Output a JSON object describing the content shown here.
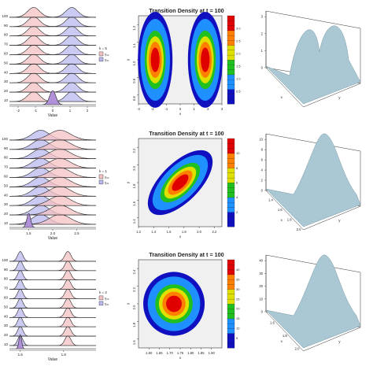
{
  "figure": {
    "heatmap_title": "Transition Density at t = 100",
    "ridge_xlabel": "Value",
    "ridge_y_ticks": [
      "100",
      "90",
      "80",
      "70",
      "60",
      "50",
      "40",
      "30",
      "20",
      "10"
    ],
    "colors": {
      "red_fill": "#f4c2c2",
      "blue_fill": "#b8b8ee",
      "purple_fill": "#b090d8",
      "surface": "#a9c8d4",
      "heat_bg": "#f0f0f0"
    }
  },
  "chart_data": [
    {
      "id": "row1-ridge",
      "type": "area",
      "panel": "ridgeline",
      "legend": {
        "title": "k = 5",
        "entries": [
          "γ₁₂",
          "γ₂₁"
        ]
      },
      "xlabel": "Value",
      "x_ticks": [
        "-2",
        "-1",
        "0",
        "1",
        "2"
      ],
      "y_ticks": [
        "100",
        "90",
        "80",
        "70",
        "60",
        "50",
        "40",
        "30",
        "20",
        "10"
      ],
      "xlim": [
        -2.5,
        2.5
      ],
      "series": [
        {
          "values": [
            -1.1,
            -1.1,
            -1.1,
            -1.1,
            -1.1,
            -1.1,
            -1.1,
            -1.1,
            -1.1,
            -1.1
          ],
          "sd": 0.35,
          "color": "red"
        },
        {
          "values": [
            1.1,
            1.1,
            1.1,
            1.1,
            1.1,
            1.1,
            1.1,
            1.1,
            1.1,
            1.1
          ],
          "sd": 0.35,
          "color": "blue"
        }
      ],
      "initial": {
        "x": 0.0,
        "sd": 0.18
      }
    },
    {
      "id": "row1-heat",
      "type": "heatmap",
      "title": "Transition Density at t = 100",
      "xlabel": "x",
      "ylabel": "y",
      "x_ticks": [
        "-3",
        "-2",
        "-1",
        "0",
        "1",
        "2",
        "3"
      ],
      "y_ticks": [
        "0.8",
        "0.9",
        "1.0",
        "1.1",
        "1.2"
      ],
      "xlim": [
        -3,
        3
      ],
      "ylim": [
        0.75,
        1.25
      ],
      "colorbar_ticks": [
        "0.5",
        "1.0",
        "1.5",
        "2.0",
        "2.5",
        "3.0"
      ],
      "modes": [
        {
          "x": -1.8,
          "y": 1.0,
          "sx": 0.55,
          "sy": 0.12,
          "amp": 3.4
        },
        {
          "x": 1.8,
          "y": 1.0,
          "sx": 0.55,
          "sy": 0.12,
          "amp": 3.4
        }
      ]
    },
    {
      "id": "row1-surface",
      "type": "area",
      "panel": "surface",
      "z_ticks": [
        "0",
        "1",
        "2",
        "3"
      ],
      "xlabel": "x",
      "ylabel": "y"
    },
    {
      "id": "row2-ridge",
      "type": "area",
      "panel": "ridgeline",
      "legend": {
        "title": "k = 1",
        "entries": [
          "γ₁₂",
          "γ₂₁"
        ]
      },
      "xlabel": "Value",
      "x_ticks": [
        "1.5",
        "2.0",
        "2.5"
      ],
      "y_ticks": [
        "100",
        "90",
        "80",
        "70",
        "60",
        "50",
        "40",
        "30",
        "20",
        "10"
      ],
      "xlim": [
        1.1,
        2.9
      ],
      "series": [
        {
          "values": [
            1.75,
            1.75,
            1.75,
            1.75,
            1.75,
            1.75,
            1.75,
            1.75,
            1.75,
            1.75
          ],
          "sd": 0.18,
          "color": "blue"
        },
        {
          "values": [
            2.15,
            2.15,
            2.15,
            2.15,
            2.15,
            2.15,
            2.15,
            2.15,
            2.15,
            2.15
          ],
          "sd": 0.22,
          "color": "red"
        }
      ],
      "initial": {
        "x": 1.5,
        "sd": 0.04
      }
    },
    {
      "id": "row2-heat",
      "type": "heatmap",
      "title": "Transition Density at t = 100",
      "xlabel": "x",
      "ylabel": "y",
      "x_ticks": [
        "1.2",
        "1.4",
        "1.6",
        "1.8",
        "2.0",
        "2.2"
      ],
      "y_ticks": [
        "1.4",
        "1.6",
        "1.8",
        "2.0",
        "2.2"
      ],
      "xlim": [
        1.2,
        2.3
      ],
      "ylim": [
        1.3,
        2.3
      ],
      "colorbar_ticks": [
        "2",
        "4",
        "6",
        "8",
        "10"
      ],
      "modes": [
        {
          "x": 1.75,
          "y": 1.8,
          "sx": 0.17,
          "sy": 0.15,
          "rho": 0.7,
          "amp": 11
        }
      ]
    },
    {
      "id": "row2-surface",
      "type": "area",
      "panel": "surface",
      "z_ticks": [
        "0",
        "2",
        "4",
        "6",
        "8",
        "10"
      ],
      "x_ticks": [
        "1.4",
        "1.6",
        "1.8",
        "2.0"
      ],
      "xlabel": "x",
      "ylabel": "y"
    },
    {
      "id": "row3-ridge",
      "type": "area",
      "panel": "ridgeline",
      "legend": {
        "title": "k = 2",
        "entries": [
          "γ₁₂",
          "γ₂₁"
        ]
      },
      "xlabel": "Value",
      "x_ticks": [
        "1.6",
        "1.8"
      ],
      "y_ticks": [
        "100",
        "90",
        "80",
        "70",
        "60",
        "50",
        "40",
        "30",
        "20",
        "10"
      ],
      "xlim": [
        1.55,
        1.95
      ],
      "series": [
        {
          "values": [
            1.6,
            1.6,
            1.6,
            1.6,
            1.6,
            1.6,
            1.6,
            1.6,
            1.6,
            1.6
          ],
          "sd": 0.012,
          "color": "blue"
        },
        {
          "values": [
            1.82,
            1.82,
            1.82,
            1.82,
            1.82,
            1.82,
            1.82,
            1.82,
            1.82,
            1.82
          ],
          "sd": 0.014,
          "color": "red"
        }
      ],
      "initial": {
        "x": 1.6,
        "sd": 0.006
      }
    },
    {
      "id": "row3-heat",
      "type": "heatmap",
      "title": "Transition Density at t = 100",
      "xlabel": "x",
      "ylabel": "y",
      "x_ticks": [
        "1.60",
        "1.65",
        "1.70",
        "1.75",
        "1.80",
        "1.85",
        "1.90"
      ],
      "y_ticks": [
        "1.6",
        "1.8",
        "2.0",
        "2.2",
        "2.4"
      ],
      "xlim": [
        1.55,
        1.95
      ],
      "ylim": [
        1.5,
        2.5
      ],
      "colorbar_ticks": [
        "5",
        "10",
        "15",
        "20",
        "25",
        "30",
        "35",
        "40"
      ],
      "modes": [
        {
          "x": 1.72,
          "y": 2.0,
          "sx": 0.065,
          "sy": 0.16,
          "amp": 40
        }
      ]
    },
    {
      "id": "row3-surface",
      "type": "area",
      "panel": "surface",
      "z_ticks": [
        "0",
        "10",
        "20",
        "30",
        "40"
      ],
      "x_ticks": [
        "1.6",
        "1.8",
        "2.0"
      ],
      "xlabel": "x",
      "ylabel": "y"
    }
  ]
}
